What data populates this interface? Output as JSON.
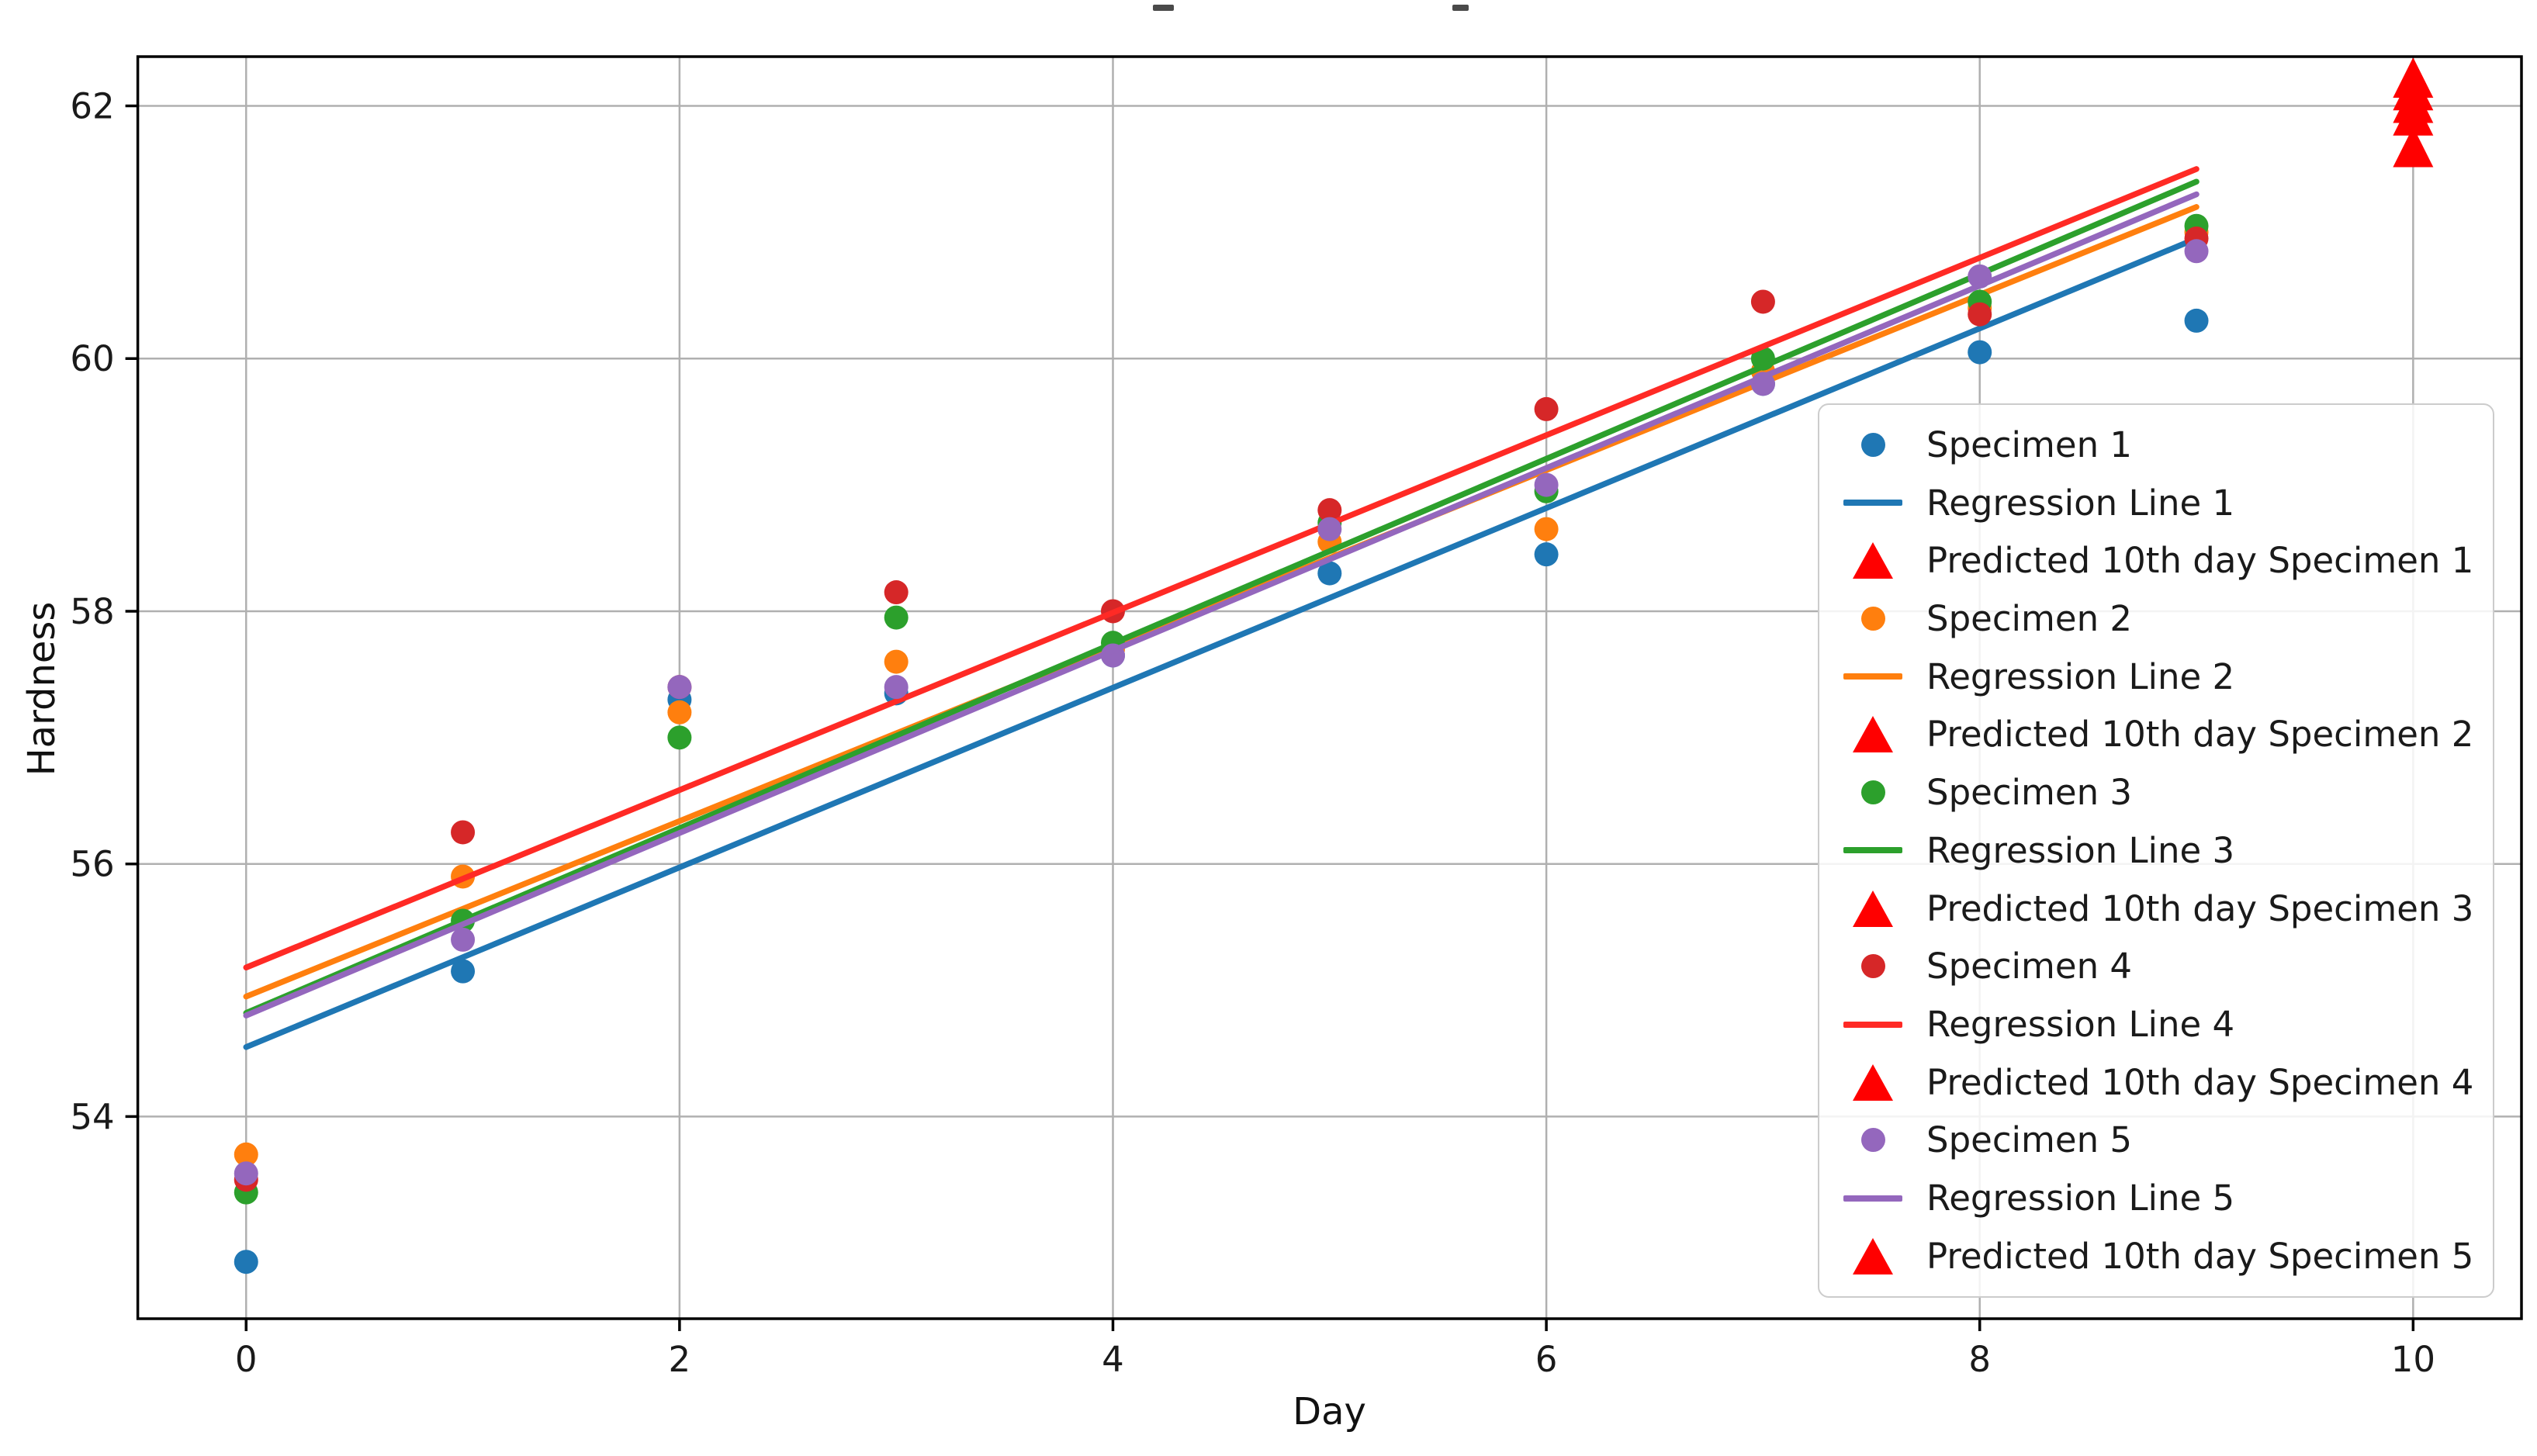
{
  "figure": {
    "background": "#ffffff",
    "title_cropped": true,
    "note": "plot title is cropped off the top of the image; only tiny descender marks remain visible"
  },
  "chart_data": {
    "type": "scatter",
    "title": "",
    "xlabel": "Day",
    "ylabel": "Hardness",
    "x_ticks": [
      0,
      2,
      4,
      6,
      8,
      10
    ],
    "y_ticks": [
      54,
      56,
      58,
      60,
      62
    ],
    "xlim": [
      -0.5,
      10.5
    ],
    "ylim": [
      52.4,
      62.39
    ],
    "grid": true,
    "legend_position": "lower right",
    "days": [
      0,
      1,
      2,
      3,
      4,
      5,
      6,
      7,
      8,
      9
    ],
    "prediction_color": "#ff0000",
    "series": [
      {
        "name": "Specimen 1",
        "color": "#1f77b4",
        "values": [
          52.85,
          55.15,
          57.3,
          57.35,
          57.65,
          58.3,
          58.45,
          59.8,
          60.05,
          60.3
        ],
        "regression": {
          "name": "Regression Line 1",
          "color": "#1f77b4",
          "x": [
            0,
            9
          ],
          "y": [
            54.55,
            60.95
          ]
        },
        "prediction": {
          "name": "Predicted 10th day Specimen 1",
          "x": 10,
          "y": 61.65
        }
      },
      {
        "name": "Specimen 2",
        "color": "#ff7f0e",
        "values": [
          53.7,
          55.9,
          57.2,
          57.6,
          57.7,
          58.55,
          58.65,
          59.9,
          60.4,
          61.0
        ],
        "regression": {
          "name": "Regression Line 2",
          "color": "#ff7f0e",
          "x": [
            0,
            9
          ],
          "y": [
            54.95,
            61.2
          ]
        },
        "prediction": {
          "name": "Predicted 10th day Specimen 2",
          "x": 10,
          "y": 61.9
        }
      },
      {
        "name": "Specimen 3",
        "color": "#2ca02c",
        "values": [
          53.4,
          55.55,
          57.0,
          57.95,
          57.75,
          58.7,
          58.95,
          60.0,
          60.45,
          61.05
        ],
        "regression": {
          "name": "Regression Line 3",
          "color": "#2ca02c",
          "x": [
            0,
            9
          ],
          "y": [
            54.82,
            61.4
          ]
        },
        "prediction": {
          "name": "Predicted 10th day Specimen 3",
          "x": 10,
          "y": 62.1
        }
      },
      {
        "name": "Specimen 4",
        "color": "#d62728",
        "values": [
          53.5,
          56.25,
          57.4,
          58.15,
          58.0,
          58.8,
          59.6,
          60.45,
          60.35,
          60.95
        ],
        "regression": {
          "name": "Regression Line 4",
          "color": "#ff2a25",
          "x": [
            0,
            9
          ],
          "y": [
            55.18,
            61.5
          ]
        },
        "prediction": {
          "name": "Predicted 10th day Specimen 4",
          "x": 10,
          "y": 62.2
        }
      },
      {
        "name": "Specimen 5",
        "color": "#9467bd",
        "values": [
          53.55,
          55.4,
          57.4,
          57.4,
          57.65,
          58.65,
          59.0,
          59.8,
          60.65,
          60.85
        ],
        "regression": {
          "name": "Regression Line 5",
          "color": "#9467bd",
          "x": [
            0,
            9
          ],
          "y": [
            54.8,
            61.3
          ]
        },
        "prediction": {
          "name": "Predicted 10th day Specimen 5",
          "x": 10,
          "y": 62.0
        }
      }
    ]
  }
}
